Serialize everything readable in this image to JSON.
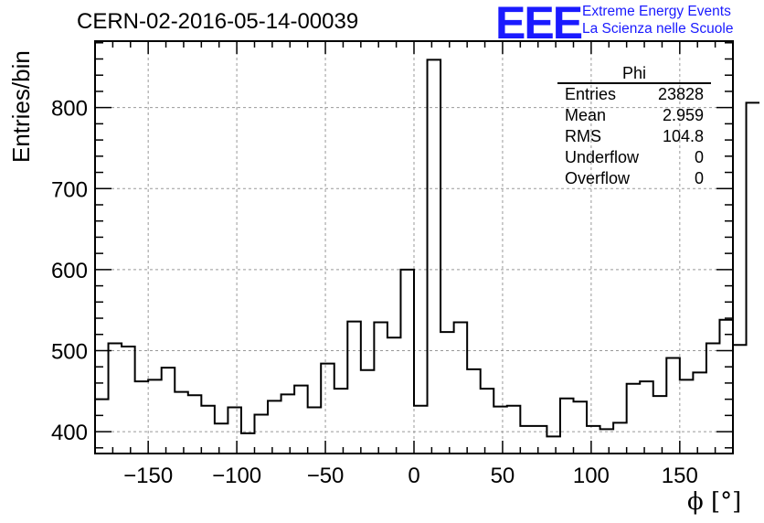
{
  "header": {
    "run_title": "CERN-02-2016-05-14-00039",
    "logo_text": "EEE",
    "logo_line1": "Extreme Energy Events",
    "logo_line2": "La Scienza nelle Scuole"
  },
  "stats_box": {
    "title": "Phi",
    "rows": [
      {
        "label": "Entries",
        "value": "23828"
      },
      {
        "label": "Mean",
        "value": "2.959"
      },
      {
        "label": "RMS",
        "value": "104.8"
      },
      {
        "label": "Underflow",
        "value": "0"
      },
      {
        "label": "Overflow",
        "value": "0"
      }
    ]
  },
  "colors": {
    "line": "#000000",
    "grid": "#999999",
    "logo": "#1a1aff"
  },
  "chart_data": {
    "type": "bar",
    "histogram": true,
    "xlabel": "ϕ [°]",
    "ylabel": "Entries/bin",
    "xlim": [
      -180,
      180
    ],
    "ylim": [
      373,
      882
    ],
    "grid": true,
    "bin_width": 7.5,
    "x_ticks": [
      -150,
      -100,
      -50,
      0,
      50,
      100,
      150
    ],
    "x_tick_labels": [
      "−150",
      "−100",
      "−50",
      "0",
      "50",
      "100",
      "150"
    ],
    "y_ticks": [
      400,
      500,
      600,
      700,
      800
    ],
    "y_tick_labels": [
      "400",
      "500",
      "600",
      "700",
      "800"
    ],
    "bin_edges_start": -180,
    "values": [
      440,
      509,
      505,
      462,
      464,
      479,
      449,
      445,
      432,
      410,
      430,
      398,
      421,
      438,
      446,
      457,
      430,
      484,
      453,
      536,
      476,
      535,
      516,
      600,
      432,
      859,
      523,
      535,
      477,
      453,
      431,
      432,
      407,
      407,
      394,
      441,
      437,
      407,
      403,
      411,
      459,
      462,
      444,
      491,
      464,
      473,
      509,
      538,
      507,
      806
    ]
  }
}
